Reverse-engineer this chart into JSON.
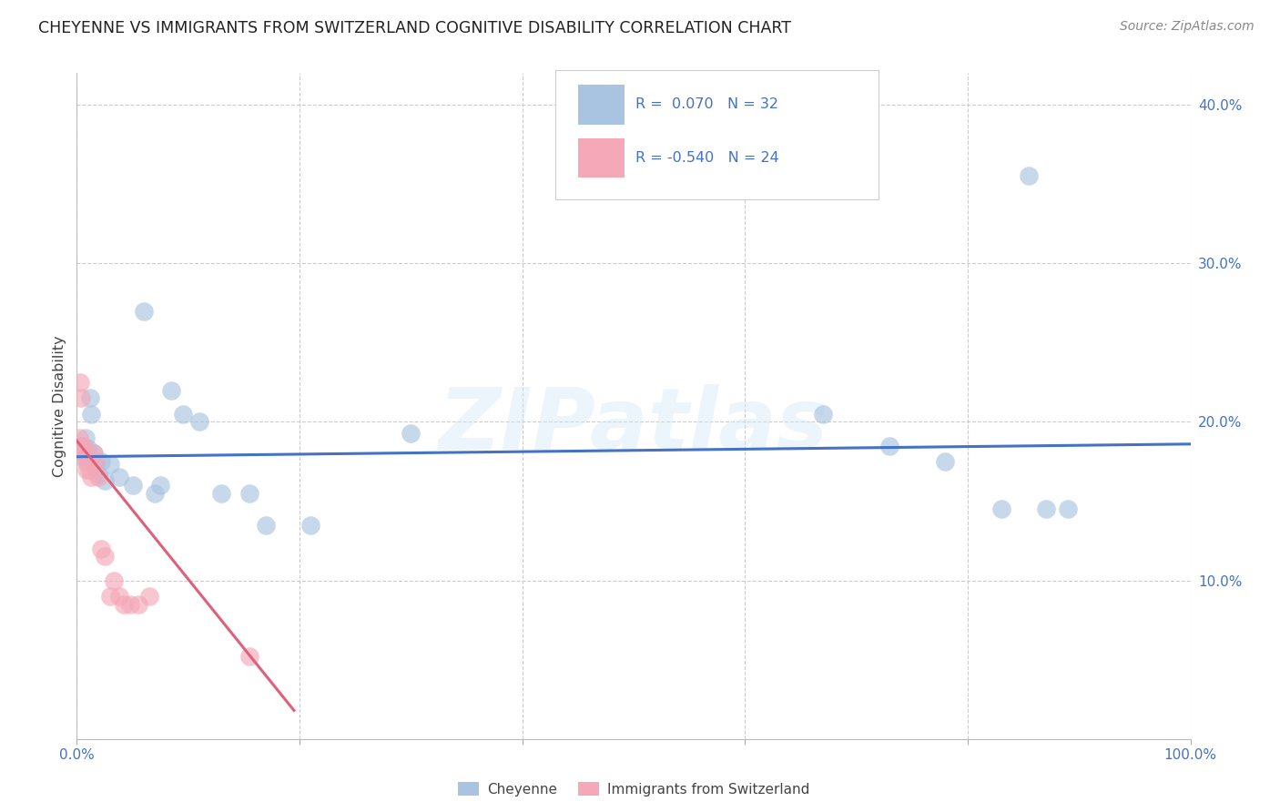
{
  "title": "CHEYENNE VS IMMIGRANTS FROM SWITZERLAND COGNITIVE DISABILITY CORRELATION CHART",
  "source": "Source: ZipAtlas.com",
  "ylabel": "Cognitive Disability",
  "xlim": [
    0.0,
    1.0
  ],
  "ylim": [
    0.0,
    0.42
  ],
  "yticks": [
    0.1,
    0.2,
    0.3,
    0.4
  ],
  "xticks": [
    0.0,
    0.2,
    0.4,
    0.6,
    0.8,
    1.0
  ],
  "blue_color": "#a8c4e0",
  "pink_color": "#f4a8b8",
  "line_blue": "#4472c4",
  "line_pink": "#e0607a",
  "text_blue": "#4472c4",
  "watermark_text": "ZIPatlas",
  "blue_scatter_x": [
    0.004,
    0.006,
    0.008,
    0.01,
    0.012,
    0.013,
    0.015,
    0.017,
    0.019,
    0.022,
    0.025,
    0.03,
    0.038,
    0.05,
    0.06,
    0.07,
    0.075,
    0.085,
    0.095,
    0.11,
    0.13,
    0.155,
    0.17,
    0.21,
    0.3,
    0.67,
    0.73,
    0.78,
    0.83,
    0.855,
    0.87,
    0.89
  ],
  "blue_scatter_y": [
    0.185,
    0.178,
    0.19,
    0.183,
    0.215,
    0.205,
    0.18,
    0.172,
    0.167,
    0.175,
    0.163,
    0.173,
    0.165,
    0.16,
    0.27,
    0.155,
    0.16,
    0.22,
    0.205,
    0.2,
    0.155,
    0.155,
    0.135,
    0.135,
    0.193,
    0.205,
    0.185,
    0.175,
    0.145,
    0.355,
    0.145,
    0.145
  ],
  "pink_scatter_x": [
    0.002,
    0.003,
    0.004,
    0.005,
    0.006,
    0.007,
    0.008,
    0.009,
    0.01,
    0.011,
    0.013,
    0.015,
    0.017,
    0.019,
    0.022,
    0.025,
    0.03,
    0.033,
    0.038,
    0.042,
    0.048,
    0.055,
    0.065,
    0.155
  ],
  "pink_scatter_y": [
    0.19,
    0.225,
    0.215,
    0.185,
    0.185,
    0.18,
    0.175,
    0.17,
    0.175,
    0.17,
    0.165,
    0.18,
    0.175,
    0.165,
    0.12,
    0.115,
    0.09,
    0.1,
    0.09,
    0.085,
    0.085,
    0.085,
    0.09,
    0.052
  ],
  "blue_line_x": [
    0.0,
    1.0
  ],
  "blue_line_y": [
    0.178,
    0.186
  ],
  "pink_line_x": [
    0.0,
    0.195
  ],
  "pink_line_y": [
    0.188,
    0.018
  ],
  "background_color": "#ffffff",
  "grid_color": "#cccccc"
}
